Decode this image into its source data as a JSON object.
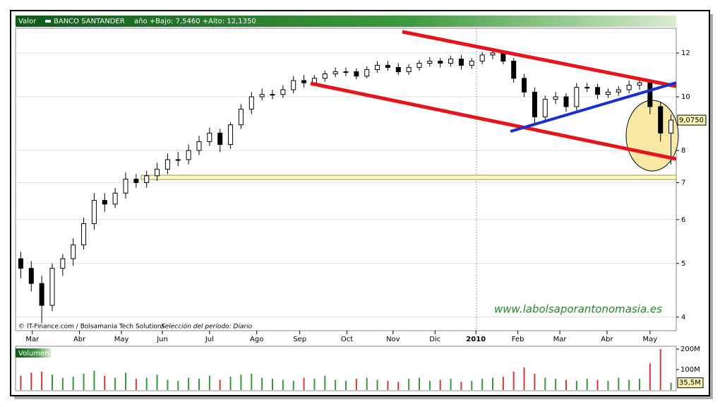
{
  "chart_data": [
    {
      "type": "candlestick",
      "header_label": "Valor",
      "title": "BANCO SANTANDER",
      "subtitle": "año +Bajo: 7,5460 +Alto: 12,1350",
      "source": "© IT-Finance.com / Bolsamania Tech Solutions",
      "period": "Selección del período: Diario",
      "annotation": "www.labolsaporantonomasia.es",
      "log_scale": true,
      "grid": true,
      "up_color": "#ffffff",
      "down_color": "#000000",
      "open": [
        5.1,
        4.9,
        4.6,
        4.2,
        4.9,
        5.1,
        5.4,
        5.9,
        6.5,
        6.4,
        6.7,
        7.1,
        7.0,
        7.2,
        7.4,
        7.7,
        7.7,
        8.0,
        8.3,
        8.6,
        8.2,
        8.9,
        9.5,
        10.0,
        10.1,
        10.1,
        10.3,
        10.7,
        10.6,
        10.8,
        11.0,
        11.1,
        11.1,
        10.9,
        11.2,
        11.4,
        11.3,
        11.1,
        11.3,
        11.5,
        11.6,
        11.5,
        11.7,
        11.4,
        11.6,
        11.9,
        12.0,
        11.6,
        10.8,
        10.2,
        9.2,
        9.9,
        10.0,
        9.6,
        10.4,
        10.4,
        10.1,
        10.2,
        10.3,
        10.5,
        10.6,
        9.6,
        8.6
      ],
      "high": [
        5.25,
        5.05,
        4.75,
        5.0,
        5.2,
        5.55,
        6.05,
        6.7,
        6.7,
        6.85,
        7.3,
        7.25,
        7.35,
        7.6,
        7.9,
        7.95,
        8.2,
        8.5,
        8.8,
        8.75,
        9.0,
        9.7,
        10.2,
        10.35,
        10.3,
        10.5,
        10.9,
        10.95,
        10.95,
        11.15,
        11.3,
        11.3,
        11.25,
        11.35,
        11.6,
        11.6,
        11.5,
        11.45,
        11.65,
        11.8,
        11.75,
        11.85,
        11.9,
        11.75,
        12.05,
        12.135,
        12.1,
        11.75,
        11.0,
        10.4,
        10.05,
        10.2,
        10.15,
        10.6,
        10.6,
        10.55,
        10.35,
        10.45,
        10.7,
        10.85,
        10.75,
        9.8,
        9.3
      ],
      "low": [
        4.7,
        4.45,
        3.9,
        4.1,
        4.75,
        4.95,
        5.3,
        5.75,
        6.2,
        6.3,
        6.55,
        6.85,
        6.85,
        7.05,
        7.25,
        7.5,
        7.55,
        7.85,
        8.15,
        7.95,
        8.05,
        8.75,
        9.3,
        9.85,
        9.9,
        9.95,
        10.15,
        10.4,
        10.45,
        10.65,
        10.85,
        10.9,
        10.75,
        10.8,
        11.05,
        11.15,
        10.95,
        10.95,
        11.15,
        11.35,
        11.3,
        11.35,
        11.2,
        11.25,
        11.45,
        11.7,
        11.45,
        10.6,
        10.0,
        8.9,
        9.0,
        9.7,
        9.4,
        9.45,
        10.2,
        9.9,
        9.95,
        10.05,
        10.15,
        10.3,
        9.3,
        8.3,
        7.546
      ],
      "close": [
        4.9,
        4.6,
        4.2,
        4.9,
        5.1,
        5.4,
        5.9,
        6.5,
        6.4,
        6.7,
        7.1,
        7.0,
        7.2,
        7.4,
        7.7,
        7.7,
        8.0,
        8.3,
        8.6,
        8.2,
        8.9,
        9.5,
        10.0,
        10.1,
        10.1,
        10.3,
        10.7,
        10.6,
        10.8,
        11.0,
        11.1,
        11.1,
        10.9,
        11.2,
        11.4,
        11.3,
        11.1,
        11.3,
        11.5,
        11.6,
        11.5,
        11.7,
        11.4,
        11.6,
        11.9,
        12.0,
        11.6,
        10.8,
        10.2,
        9.2,
        9.9,
        10.0,
        9.6,
        10.4,
        10.4,
        10.1,
        10.2,
        10.3,
        10.5,
        10.6,
        9.6,
        8.6,
        9.075
      ],
      "last": {
        "value": 9.075,
        "label": "9,0750"
      },
      "xlim": [
        0,
        63
      ],
      "xticks": [
        {
          "value": 1.6,
          "label": "Mar"
        },
        {
          "value": 6.1,
          "label": "Abr"
        },
        {
          "value": 10.1,
          "label": "May"
        },
        {
          "value": 14.0,
          "label": "Jun"
        },
        {
          "value": 18.5,
          "label": "Jul"
        },
        {
          "value": 23.0,
          "label": "Ago"
        },
        {
          "value": 27.1,
          "label": "Sep"
        },
        {
          "value": 31.6,
          "label": "Oct"
        },
        {
          "value": 36.0,
          "label": "Nov"
        },
        {
          "value": 40.0,
          "label": "Dic"
        },
        {
          "value": 43.9,
          "label": "2010"
        },
        {
          "value": 47.9,
          "label": "Feb"
        },
        {
          "value": 51.9,
          "label": "Mar"
        },
        {
          "value": 56.4,
          "label": "Abr"
        },
        {
          "value": 60.5,
          "label": "May"
        }
      ],
      "ylim": [
        3.78,
        13.3
      ],
      "yticks": [
        4,
        5,
        6,
        7,
        8,
        10,
        12
      ]
    },
    {
      "type": "bar",
      "title": "Volumen",
      "up_color": "#2e9e3a",
      "down_color": "#d23a3a",
      "values": [
        70,
        85,
        90,
        75,
        60,
        65,
        80,
        95,
        70,
        60,
        85,
        55,
        60,
        75,
        50,
        45,
        60,
        55,
        70,
        50,
        65,
        75,
        80,
        60,
        55,
        50,
        45,
        60,
        55,
        70,
        50,
        45,
        55,
        60,
        50,
        45,
        40,
        55,
        60,
        45,
        50,
        55,
        40,
        45,
        55,
        60,
        65,
        90,
        110,
        80,
        60,
        55,
        50,
        45,
        55,
        50,
        45,
        60,
        50,
        55,
        130,
        200,
        35.5
      ],
      "last": {
        "value": 35.5,
        "label": "35,5M"
      },
      "ylim": [
        0,
        207
      ],
      "yticks": [
        {
          "value": 100,
          "label": "100M"
        },
        {
          "value": 200,
          "label": "200M"
        }
      ]
    }
  ]
}
